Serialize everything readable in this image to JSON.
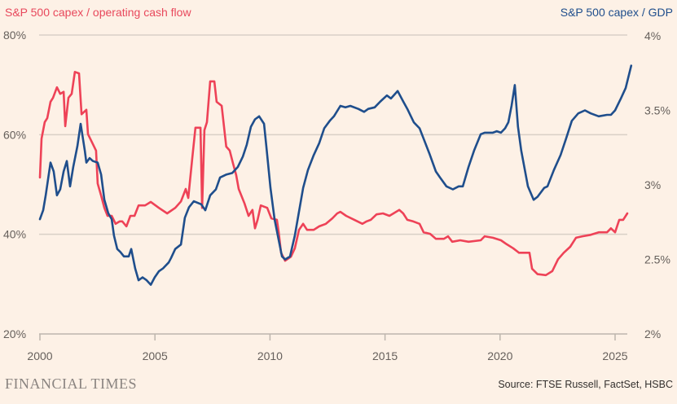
{
  "chart_data": {
    "type": "line",
    "title_left": "S&P 500 capex / operating cash flow",
    "title_right": "S&P 500 capex / GDP",
    "x_ticks": [
      "2000",
      "2005",
      "2010",
      "2015",
      "2020",
      "2025"
    ],
    "xlim": [
      2000,
      2026
    ],
    "y_left": {
      "ticks": [
        "80%",
        "60%",
        "40%",
        "20%"
      ],
      "tick_values": [
        80,
        60,
        40,
        20
      ],
      "ylim": [
        20,
        80
      ]
    },
    "y_right": {
      "ticks": [
        "4%",
        "3.5%",
        "3%",
        "2.5%",
        "2%"
      ],
      "tick_values": [
        4,
        3.5,
        3,
        2.5,
        2
      ],
      "ylim": [
        2,
        4
      ]
    },
    "grid": true,
    "series": [
      {
        "name": "S&P 500 capex / operating cash flow",
        "axis": "left",
        "color": "#ee4257",
        "points": [
          [
            2000.0,
            51.4
          ],
          [
            2000.07,
            59.2
          ],
          [
            2000.21,
            62.5
          ],
          [
            2000.32,
            63.3
          ],
          [
            2000.46,
            66.6
          ],
          [
            2000.57,
            67.4
          ],
          [
            2000.74,
            69.5
          ],
          [
            2000.88,
            68.2
          ],
          [
            2001.03,
            68.6
          ],
          [
            2001.1,
            61.7
          ],
          [
            2001.24,
            67.4
          ],
          [
            2001.38,
            68.2
          ],
          [
            2001.52,
            72.6
          ],
          [
            2001.7,
            72.3
          ],
          [
            2001.81,
            64.1
          ],
          [
            2002.02,
            65.0
          ],
          [
            2002.09,
            60.1
          ],
          [
            2002.27,
            58.4
          ],
          [
            2002.44,
            56.8
          ],
          [
            2002.51,
            50.2
          ],
          [
            2002.66,
            47.8
          ],
          [
            2002.8,
            45.3
          ],
          [
            2002.94,
            43.7
          ],
          [
            2003.12,
            43.7
          ],
          [
            2003.29,
            42.1
          ],
          [
            2003.47,
            42.6
          ],
          [
            2003.58,
            42.6
          ],
          [
            2003.76,
            41.6
          ],
          [
            2003.93,
            43.7
          ],
          [
            2004.11,
            43.7
          ],
          [
            2004.29,
            45.8
          ],
          [
            2004.57,
            45.8
          ],
          [
            2004.82,
            46.5
          ],
          [
            2005.17,
            45.3
          ],
          [
            2005.53,
            44.2
          ],
          [
            2005.88,
            45.3
          ],
          [
            2006.13,
            46.6
          ],
          [
            2006.34,
            49.1
          ],
          [
            2006.45,
            47.3
          ],
          [
            2006.62,
            55.1
          ],
          [
            2006.76,
            61.4
          ],
          [
            2006.98,
            61.4
          ],
          [
            2007.05,
            45.3
          ],
          [
            2007.15,
            60.9
          ],
          [
            2007.26,
            62.5
          ],
          [
            2007.4,
            70.7
          ],
          [
            2007.58,
            70.7
          ],
          [
            2007.68,
            66.6
          ],
          [
            2007.9,
            65.8
          ],
          [
            2008.1,
            57.6
          ],
          [
            2008.25,
            56.8
          ],
          [
            2008.39,
            54.3
          ],
          [
            2008.53,
            51.9
          ],
          [
            2008.64,
            49.1
          ],
          [
            2008.89,
            46.2
          ],
          [
            2009.07,
            43.7
          ],
          [
            2009.24,
            44.9
          ],
          [
            2009.35,
            41.2
          ],
          [
            2009.46,
            42.9
          ],
          [
            2009.6,
            45.8
          ],
          [
            2009.88,
            45.3
          ],
          [
            2010.06,
            43.2
          ],
          [
            2010.3,
            42.9
          ],
          [
            2010.38,
            40.4
          ],
          [
            2010.48,
            36.3
          ],
          [
            2010.66,
            34.7
          ],
          [
            2010.91,
            35.5
          ],
          [
            2011.08,
            37.2
          ],
          [
            2011.26,
            40.9
          ],
          [
            2011.44,
            42.1
          ],
          [
            2011.61,
            40.9
          ],
          [
            2011.9,
            40.9
          ],
          [
            2012.14,
            41.6
          ],
          [
            2012.43,
            42.1
          ],
          [
            2012.71,
            43.2
          ],
          [
            2012.92,
            44.2
          ],
          [
            2013.06,
            44.5
          ],
          [
            2013.31,
            43.7
          ],
          [
            2013.67,
            42.9
          ],
          [
            2014.02,
            42.1
          ],
          [
            2014.2,
            42.6
          ],
          [
            2014.38,
            42.9
          ],
          [
            2014.63,
            44.0
          ],
          [
            2014.91,
            44.2
          ],
          [
            2015.19,
            43.7
          ],
          [
            2015.37,
            44.2
          ],
          [
            2015.62,
            44.9
          ],
          [
            2015.79,
            44.2
          ],
          [
            2015.97,
            42.9
          ],
          [
            2016.22,
            42.6
          ],
          [
            2016.5,
            42.1
          ],
          [
            2016.68,
            40.4
          ],
          [
            2016.96,
            40.1
          ],
          [
            2017.21,
            39.1
          ],
          [
            2017.56,
            39.1
          ],
          [
            2017.74,
            39.6
          ],
          [
            2017.92,
            38.5
          ],
          [
            2018.27,
            38.8
          ],
          [
            2018.63,
            38.5
          ],
          [
            2019.16,
            38.8
          ],
          [
            2019.33,
            39.6
          ],
          [
            2019.69,
            39.3
          ],
          [
            2020.04,
            38.8
          ],
          [
            2020.29,
            38.0
          ],
          [
            2020.57,
            37.2
          ],
          [
            2020.82,
            36.3
          ],
          [
            2021.28,
            36.3
          ],
          [
            2021.39,
            33.1
          ],
          [
            2021.63,
            32.0
          ],
          [
            2021.99,
            31.8
          ],
          [
            2022.27,
            32.6
          ],
          [
            2022.52,
            35.0
          ],
          [
            2022.77,
            36.3
          ],
          [
            2023.05,
            37.5
          ],
          [
            2023.3,
            39.3
          ],
          [
            2023.58,
            39.6
          ],
          [
            2023.94,
            39.9
          ],
          [
            2024.29,
            40.4
          ],
          [
            2024.65,
            40.4
          ],
          [
            2024.82,
            41.2
          ],
          [
            2025.0,
            40.4
          ],
          [
            2025.18,
            42.9
          ],
          [
            2025.35,
            42.9
          ],
          [
            2025.53,
            44.2
          ]
        ]
      },
      {
        "name": "S&P 500 capex / GDP",
        "axis": "right",
        "color": "#1f4e8c",
        "points": [
          [
            2000.0,
            2.77
          ],
          [
            2000.14,
            2.83
          ],
          [
            2000.25,
            2.93
          ],
          [
            2000.46,
            3.15
          ],
          [
            2000.6,
            3.09
          ],
          [
            2000.74,
            2.93
          ],
          [
            2000.88,
            2.97
          ],
          [
            2001.03,
            3.09
          ],
          [
            2001.17,
            3.16
          ],
          [
            2001.31,
            2.99
          ],
          [
            2001.45,
            3.12
          ],
          [
            2001.63,
            3.26
          ],
          [
            2001.77,
            3.41
          ],
          [
            2001.95,
            3.23
          ],
          [
            2002.02,
            3.15
          ],
          [
            2002.16,
            3.18
          ],
          [
            2002.3,
            3.16
          ],
          [
            2002.51,
            3.15
          ],
          [
            2002.66,
            3.07
          ],
          [
            2002.8,
            2.9
          ],
          [
            2002.97,
            2.81
          ],
          [
            2003.12,
            2.77
          ],
          [
            2003.22,
            2.66
          ],
          [
            2003.36,
            2.57
          ],
          [
            2003.5,
            2.55
          ],
          [
            2003.65,
            2.52
          ],
          [
            2003.86,
            2.52
          ],
          [
            2003.97,
            2.57
          ],
          [
            2004.14,
            2.44
          ],
          [
            2004.29,
            2.36
          ],
          [
            2004.46,
            2.38
          ],
          [
            2004.64,
            2.36
          ],
          [
            2004.82,
            2.33
          ],
          [
            2004.99,
            2.38
          ],
          [
            2005.17,
            2.42
          ],
          [
            2005.35,
            2.44
          ],
          [
            2005.6,
            2.48
          ],
          [
            2005.7,
            2.51
          ],
          [
            2005.88,
            2.57
          ],
          [
            2006.13,
            2.6
          ],
          [
            2006.3,
            2.78
          ],
          [
            2006.48,
            2.85
          ],
          [
            2006.69,
            2.89
          ],
          [
            2007.01,
            2.87
          ],
          [
            2007.19,
            2.83
          ],
          [
            2007.4,
            2.93
          ],
          [
            2007.65,
            2.97
          ],
          [
            2007.83,
            3.05
          ],
          [
            2008.11,
            3.07
          ],
          [
            2008.36,
            3.08
          ],
          [
            2008.6,
            3.12
          ],
          [
            2008.82,
            3.19
          ],
          [
            2008.99,
            3.27
          ],
          [
            2009.17,
            3.39
          ],
          [
            2009.35,
            3.44
          ],
          [
            2009.53,
            3.46
          ],
          [
            2009.74,
            3.41
          ],
          [
            2009.84,
            3.26
          ],
          [
            2010.02,
            2.98
          ],
          [
            2010.2,
            2.77
          ],
          [
            2010.38,
            2.63
          ],
          [
            2010.52,
            2.52
          ],
          [
            2010.66,
            2.5
          ],
          [
            2010.87,
            2.52
          ],
          [
            2011.08,
            2.66
          ],
          [
            2011.26,
            2.82
          ],
          [
            2011.44,
            2.98
          ],
          [
            2011.65,
            3.1
          ],
          [
            2011.9,
            3.2
          ],
          [
            2012.14,
            3.28
          ],
          [
            2012.36,
            3.38
          ],
          [
            2012.6,
            3.43
          ],
          [
            2012.78,
            3.46
          ],
          [
            2013.06,
            3.53
          ],
          [
            2013.28,
            3.52
          ],
          [
            2013.49,
            3.53
          ],
          [
            2013.84,
            3.51
          ],
          [
            2014.09,
            3.49
          ],
          [
            2014.27,
            3.51
          ],
          [
            2014.55,
            3.52
          ],
          [
            2014.8,
            3.56
          ],
          [
            2015.08,
            3.6
          ],
          [
            2015.26,
            3.58
          ],
          [
            2015.55,
            3.63
          ],
          [
            2015.79,
            3.56
          ],
          [
            2015.97,
            3.51
          ],
          [
            2016.25,
            3.42
          ],
          [
            2016.5,
            3.38
          ],
          [
            2016.68,
            3.31
          ],
          [
            2016.93,
            3.21
          ],
          [
            2017.21,
            3.09
          ],
          [
            2017.39,
            3.05
          ],
          [
            2017.67,
            2.99
          ],
          [
            2017.95,
            2.97
          ],
          [
            2018.2,
            2.99
          ],
          [
            2018.38,
            2.99
          ],
          [
            2018.63,
            3.12
          ],
          [
            2018.87,
            3.23
          ],
          [
            2019.16,
            3.34
          ],
          [
            2019.33,
            3.35
          ],
          [
            2019.69,
            3.35
          ],
          [
            2019.86,
            3.36
          ],
          [
            2020.04,
            3.35
          ],
          [
            2020.22,
            3.38
          ],
          [
            2020.36,
            3.42
          ],
          [
            2020.5,
            3.53
          ],
          [
            2020.64,
            3.67
          ],
          [
            2020.78,
            3.39
          ],
          [
            2020.92,
            3.23
          ],
          [
            2021.21,
            2.99
          ],
          [
            2021.46,
            2.9
          ],
          [
            2021.63,
            2.92
          ],
          [
            2021.92,
            2.98
          ],
          [
            2022.06,
            2.99
          ],
          [
            2022.34,
            3.1
          ],
          [
            2022.63,
            3.2
          ],
          [
            2022.87,
            3.31
          ],
          [
            2023.12,
            3.43
          ],
          [
            2023.4,
            3.48
          ],
          [
            2023.69,
            3.5
          ],
          [
            2023.94,
            3.48
          ],
          [
            2024.29,
            3.46
          ],
          [
            2024.65,
            3.47
          ],
          [
            2024.82,
            3.47
          ],
          [
            2025.0,
            3.5
          ],
          [
            2025.25,
            3.58
          ],
          [
            2025.46,
            3.65
          ],
          [
            2025.7,
            3.8
          ]
        ]
      }
    ]
  },
  "footer": {
    "brand": "FINANCIAL TIMES",
    "source": "Source: FTSE Russell, FactSet, HSBC"
  }
}
